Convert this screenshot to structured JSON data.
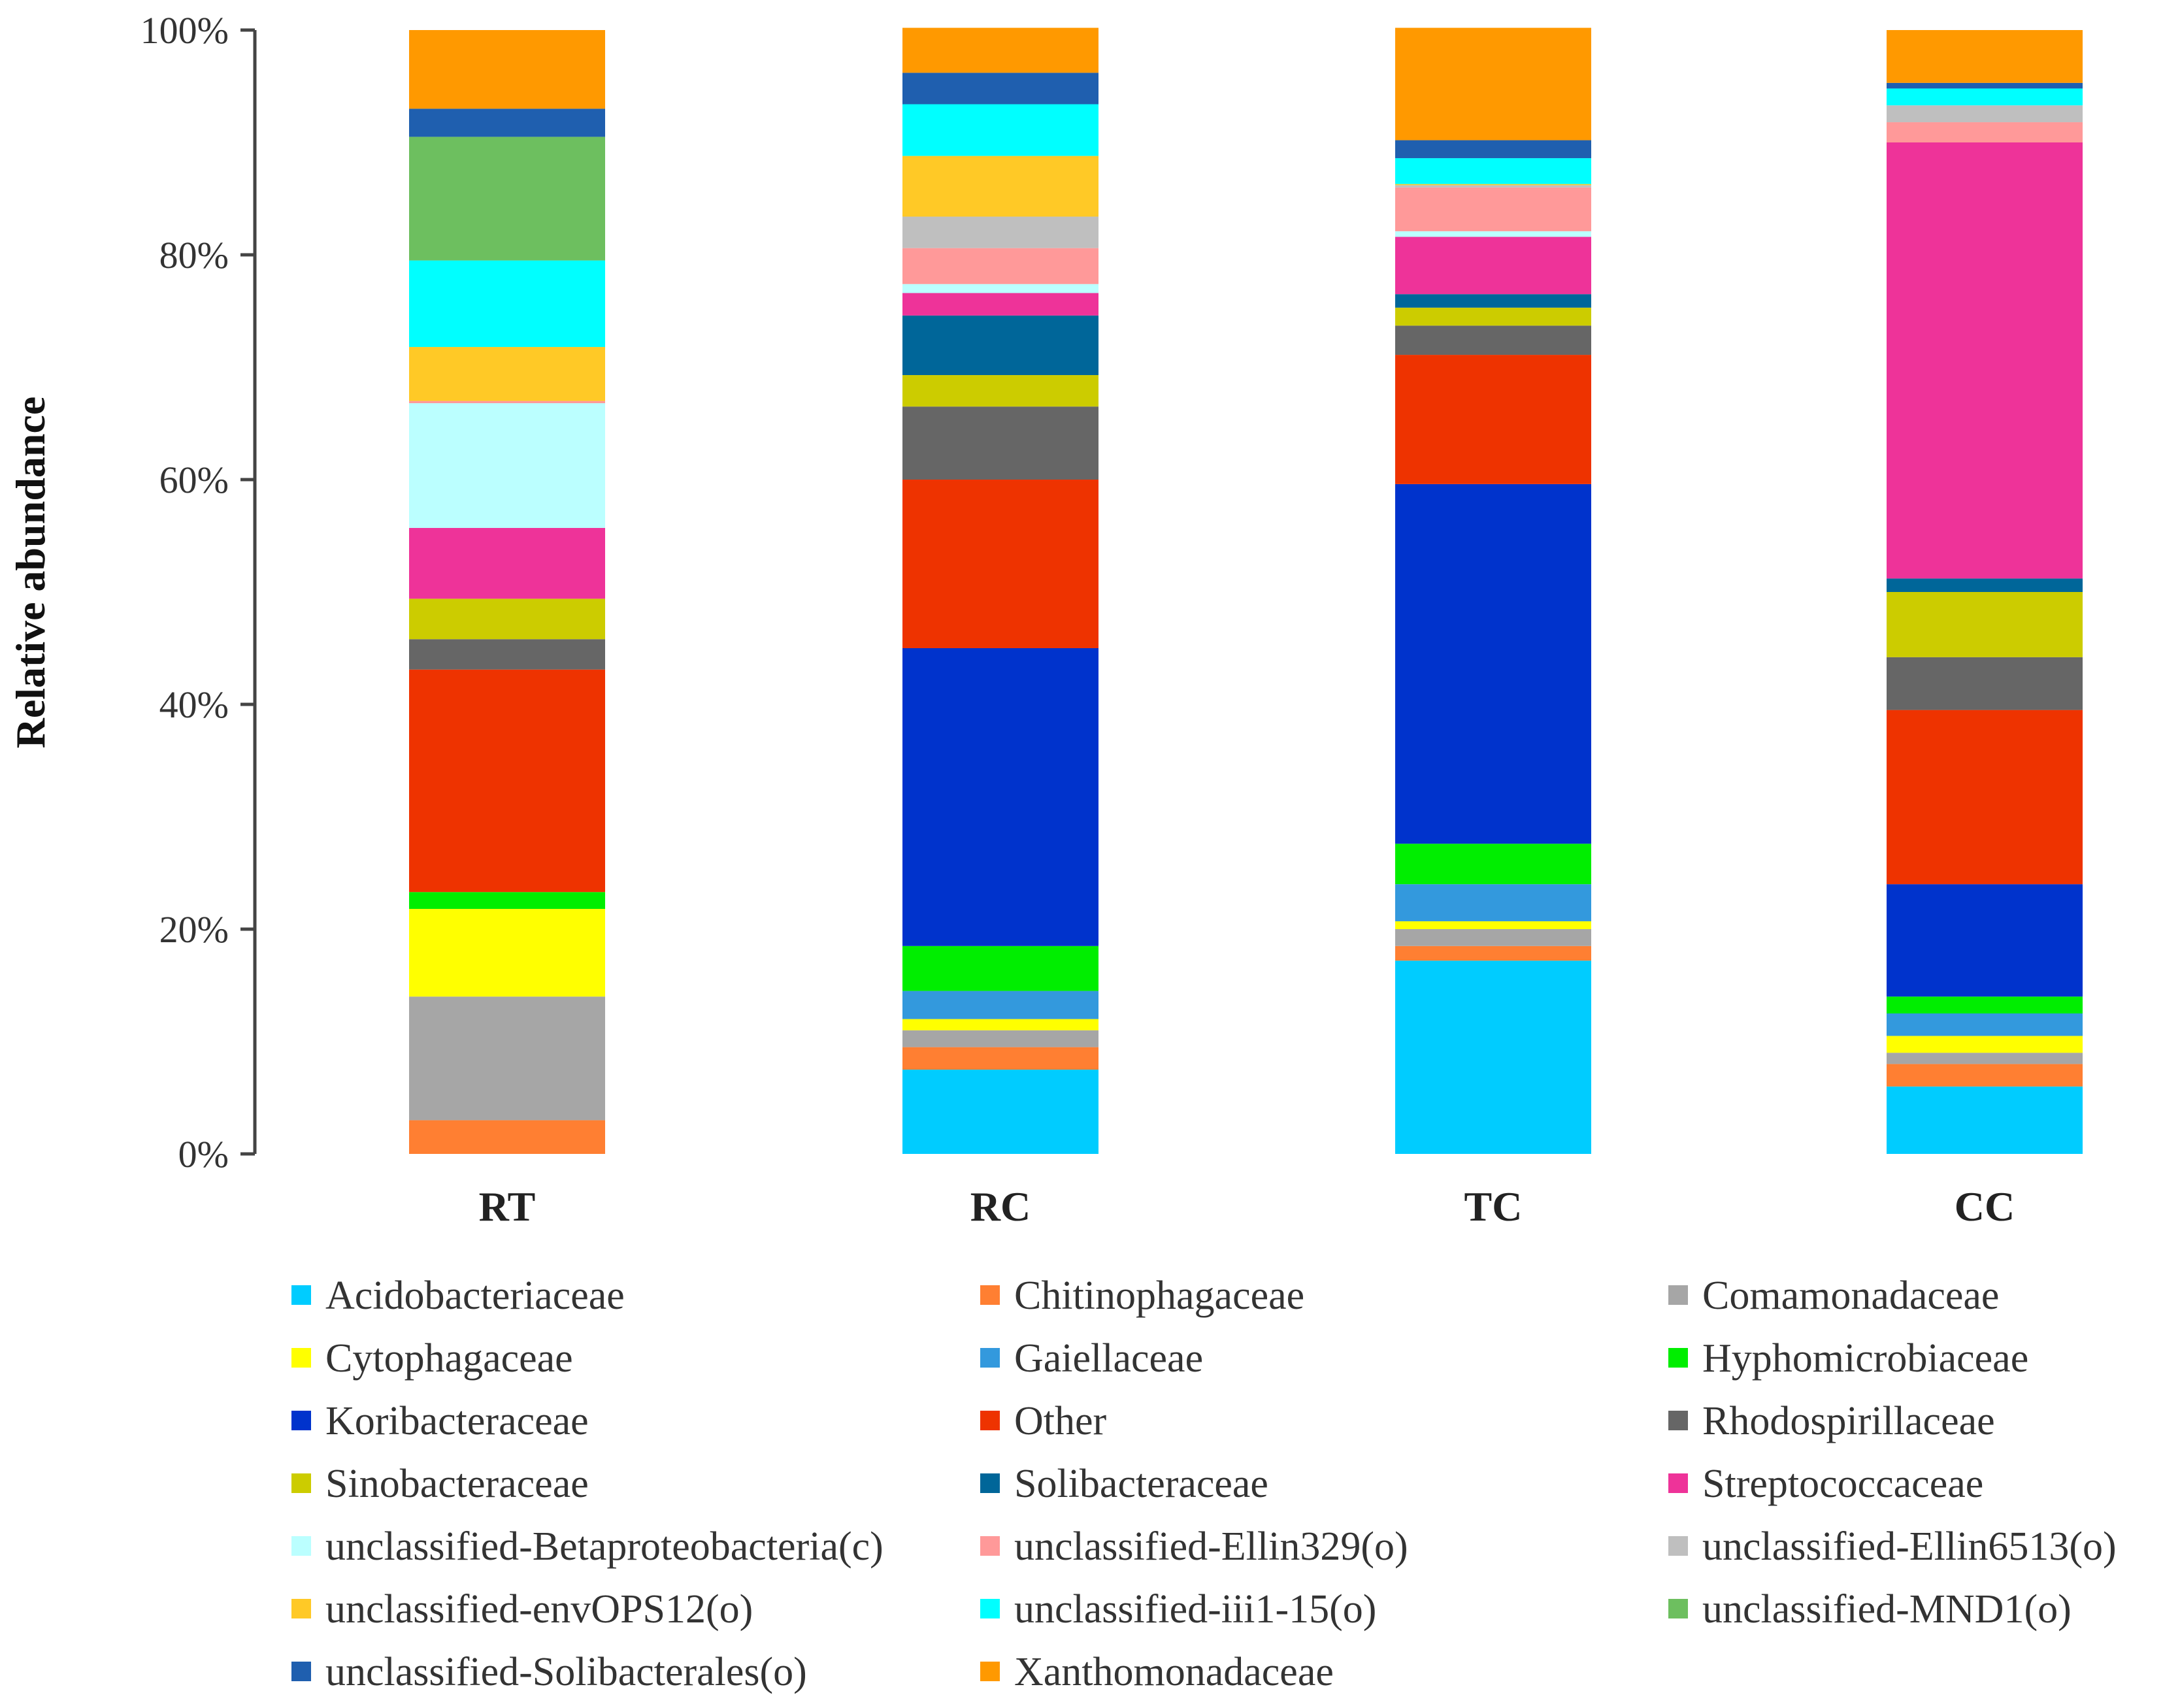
{
  "chart_data": {
    "type": "bar",
    "stacked": true,
    "ylabel": "Relative abundance",
    "ylim": [
      0,
      100
    ],
    "yticks": [
      "0%",
      "20%",
      "40%",
      "60%",
      "80%",
      "100%"
    ],
    "categories": [
      "RT",
      "RC",
      "TC",
      "CC"
    ],
    "legend_position": "bottom",
    "series": [
      {
        "name": "Acidobacteriaceae",
        "color": "#00CCFF",
        "values": [
          0,
          7.5,
          17.2,
          6.0
        ]
      },
      {
        "name": "Chitinophagaceae",
        "color": "#FF7F32",
        "values": [
          3.0,
          2.0,
          1.3,
          2.0
        ]
      },
      {
        "name": "Comamonadaceae",
        "color": "#A6A6A6",
        "values": [
          11.0,
          1.5,
          1.5,
          1.0
        ]
      },
      {
        "name": "Cytophagaceae",
        "color": "#FFFF00",
        "values": [
          7.8,
          1.0,
          0.7,
          1.5
        ]
      },
      {
        "name": "Gaiellaceae",
        "color": "#3399DD",
        "values": [
          0,
          2.5,
          3.3,
          2.0
        ]
      },
      {
        "name": "Hyphomicrobiaceae",
        "color": "#00EE00",
        "values": [
          1.5,
          4.0,
          3.6,
          1.5
        ]
      },
      {
        "name": "Koribacteraceae",
        "color": "#0033CC",
        "values": [
          0,
          26.5,
          32.0,
          10.0
        ]
      },
      {
        "name": "Other",
        "color": "#EE3300",
        "values": [
          19.8,
          15.0,
          11.5,
          15.5
        ]
      },
      {
        "name": "Rhodospirillaceae",
        "color": "#666666",
        "values": [
          2.7,
          6.5,
          2.6,
          4.7
        ]
      },
      {
        "name": "Sinobacteraceae",
        "color": "#CCCC00",
        "values": [
          3.6,
          2.8,
          1.6,
          5.8
        ]
      },
      {
        "name": "Solibacteraceae",
        "color": "#006699",
        "values": [
          0,
          5.3,
          1.2,
          1.2
        ]
      },
      {
        "name": "Streptococcaceae",
        "color": "#EE3399",
        "values": [
          6.3,
          2.0,
          5.1,
          38.8
        ]
      },
      {
        "name": "unclassified-Betaproteobacteria(c)",
        "color": "#BBFFFF",
        "values": [
          11.1,
          0.8,
          0.5,
          0
        ]
      },
      {
        "name": "unclassified-Ellin329(o)",
        "color": "#FF9999",
        "values": [
          0.2,
          3.2,
          3.9,
          1.8
        ]
      },
      {
        "name": "unclassified-Ellin6513(o)",
        "color": "#BFBFBF",
        "values": [
          0,
          2.8,
          0.2,
          1.5
        ]
      },
      {
        "name": "unclassified-envOPS12(o)",
        "color": "#FFC926",
        "values": [
          4.8,
          5.4,
          0.1,
          0
        ]
      },
      {
        "name": "unclassified-iii1-15(o)",
        "color": "#00FFFF",
        "values": [
          7.7,
          4.6,
          2.3,
          1.5
        ]
      },
      {
        "name": "unclassified-MND1(o)",
        "color": "#6DBF5F",
        "values": [
          11.0,
          0,
          0,
          0
        ]
      },
      {
        "name": "unclassified-Solibacterales(o)",
        "color": "#1F5FAF",
        "values": [
          2.5,
          2.8,
          1.6,
          0.5
        ]
      },
      {
        "name": "Xanthomonadaceae",
        "color": "#FF9900",
        "values": [
          7.0,
          4.0,
          10.0,
          4.7
        ]
      }
    ]
  }
}
